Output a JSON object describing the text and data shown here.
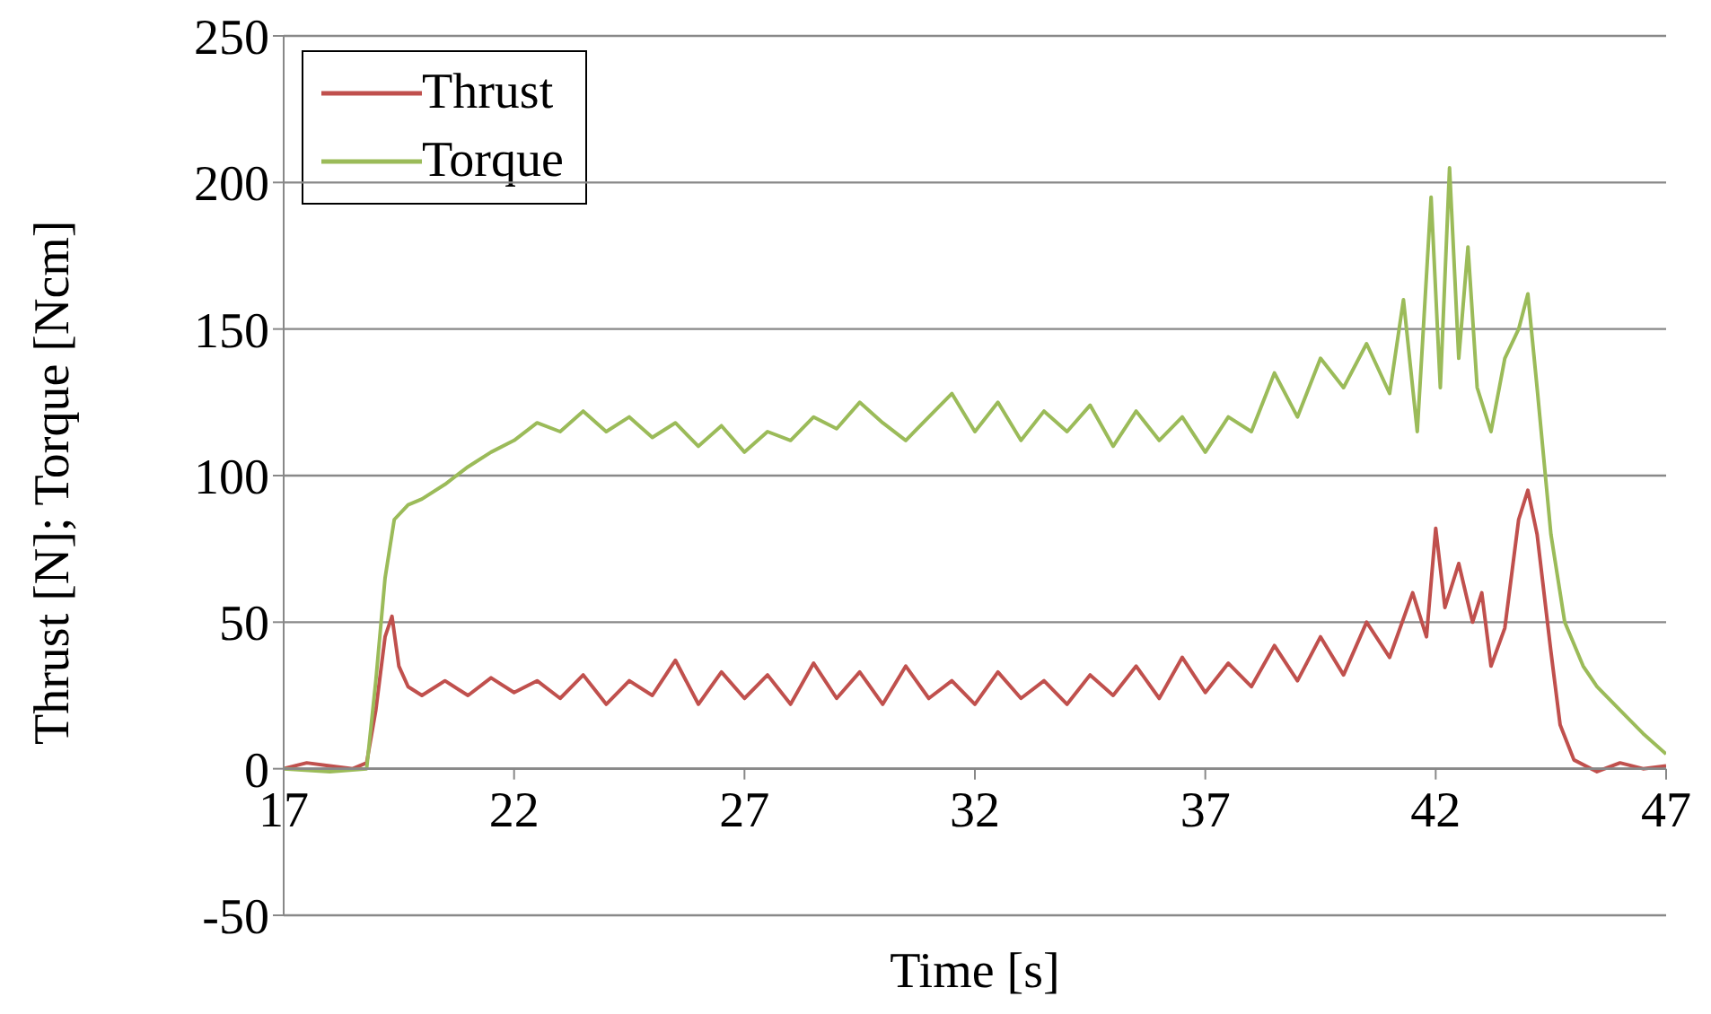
{
  "chart_data": {
    "type": "line",
    "xlabel": "Time [s]",
    "ylabel": "Thrust [N]; Torque [Ncm]",
    "xlim": [
      17,
      47
    ],
    "xticks": [
      17,
      22,
      27,
      32,
      37,
      42,
      47
    ],
    "ylim": [
      -50,
      250
    ],
    "yticks": [
      -50,
      0,
      50,
      100,
      150,
      200,
      250
    ],
    "grid": "y",
    "legend": "top left",
    "marker": "none",
    "line_style": "solid",
    "series": [
      {
        "name": "Thrust",
        "color": "#c0504d",
        "x": [
          17,
          17.5,
          18,
          18.5,
          18.8,
          19.0,
          19.2,
          19.35,
          19.5,
          19.7,
          20,
          20.5,
          21,
          21.5,
          22,
          22.5,
          23,
          23.5,
          24,
          24.5,
          25,
          25.5,
          26,
          26.5,
          27,
          27.5,
          28,
          28.5,
          29,
          29.5,
          30,
          30.5,
          31,
          31.5,
          32,
          32.5,
          33,
          33.5,
          34,
          34.5,
          35,
          35.5,
          36,
          36.5,
          37,
          37.5,
          38,
          38.5,
          39,
          39.5,
          40,
          40.5,
          41,
          41.5,
          41.8,
          42,
          42.2,
          42.5,
          42.8,
          43,
          43.2,
          43.5,
          43.8,
          44.0,
          44.2,
          44.5,
          44.7,
          45,
          45.5,
          46,
          46.5,
          47
        ],
        "values": [
          0,
          2,
          1,
          0,
          2,
          20,
          45,
          52,
          35,
          28,
          25,
          30,
          25,
          31,
          26,
          30,
          24,
          32,
          22,
          30,
          25,
          37,
          22,
          33,
          24,
          32,
          22,
          36,
          24,
          33,
          22,
          35,
          24,
          30,
          22,
          33,
          24,
          30,
          22,
          32,
          25,
          35,
          24,
          38,
          26,
          36,
          28,
          42,
          30,
          45,
          32,
          50,
          38,
          60,
          45,
          82,
          55,
          70,
          50,
          60,
          35,
          48,
          85,
          95,
          80,
          40,
          15,
          3,
          -1,
          2,
          0,
          1
        ]
      },
      {
        "name": "Torque",
        "color": "#9bbb59",
        "x": [
          17,
          18,
          18.8,
          19.0,
          19.2,
          19.4,
          19.7,
          20,
          20.5,
          21,
          21.5,
          22,
          22.5,
          23,
          23.5,
          24,
          24.5,
          25,
          25.5,
          26,
          26.5,
          27,
          27.5,
          28,
          28.5,
          29,
          29.5,
          30,
          30.5,
          31,
          31.5,
          32,
          32.5,
          33,
          33.5,
          34,
          34.5,
          35,
          35.5,
          36,
          36.5,
          37,
          37.5,
          38,
          38.5,
          39,
          39.5,
          40,
          40.5,
          41,
          41.3,
          41.6,
          41.9,
          42.1,
          42.3,
          42.5,
          42.7,
          42.9,
          43.2,
          43.5,
          43.8,
          44.0,
          44.2,
          44.5,
          44.8,
          45.2,
          45.5,
          46,
          46.5,
          47
        ],
        "values": [
          0,
          -1,
          0,
          30,
          65,
          85,
          90,
          92,
          97,
          103,
          108,
          112,
          118,
          115,
          122,
          115,
          120,
          113,
          118,
          110,
          117,
          108,
          115,
          112,
          120,
          116,
          125,
          118,
          112,
          120,
          128,
          115,
          125,
          112,
          122,
          115,
          124,
          110,
          122,
          112,
          120,
          108,
          120,
          115,
          135,
          120,
          140,
          130,
          145,
          128,
          160,
          115,
          195,
          130,
          205,
          140,
          178,
          130,
          115,
          140,
          150,
          162,
          130,
          80,
          50,
          35,
          28,
          20,
          12,
          5
        ]
      }
    ]
  }
}
